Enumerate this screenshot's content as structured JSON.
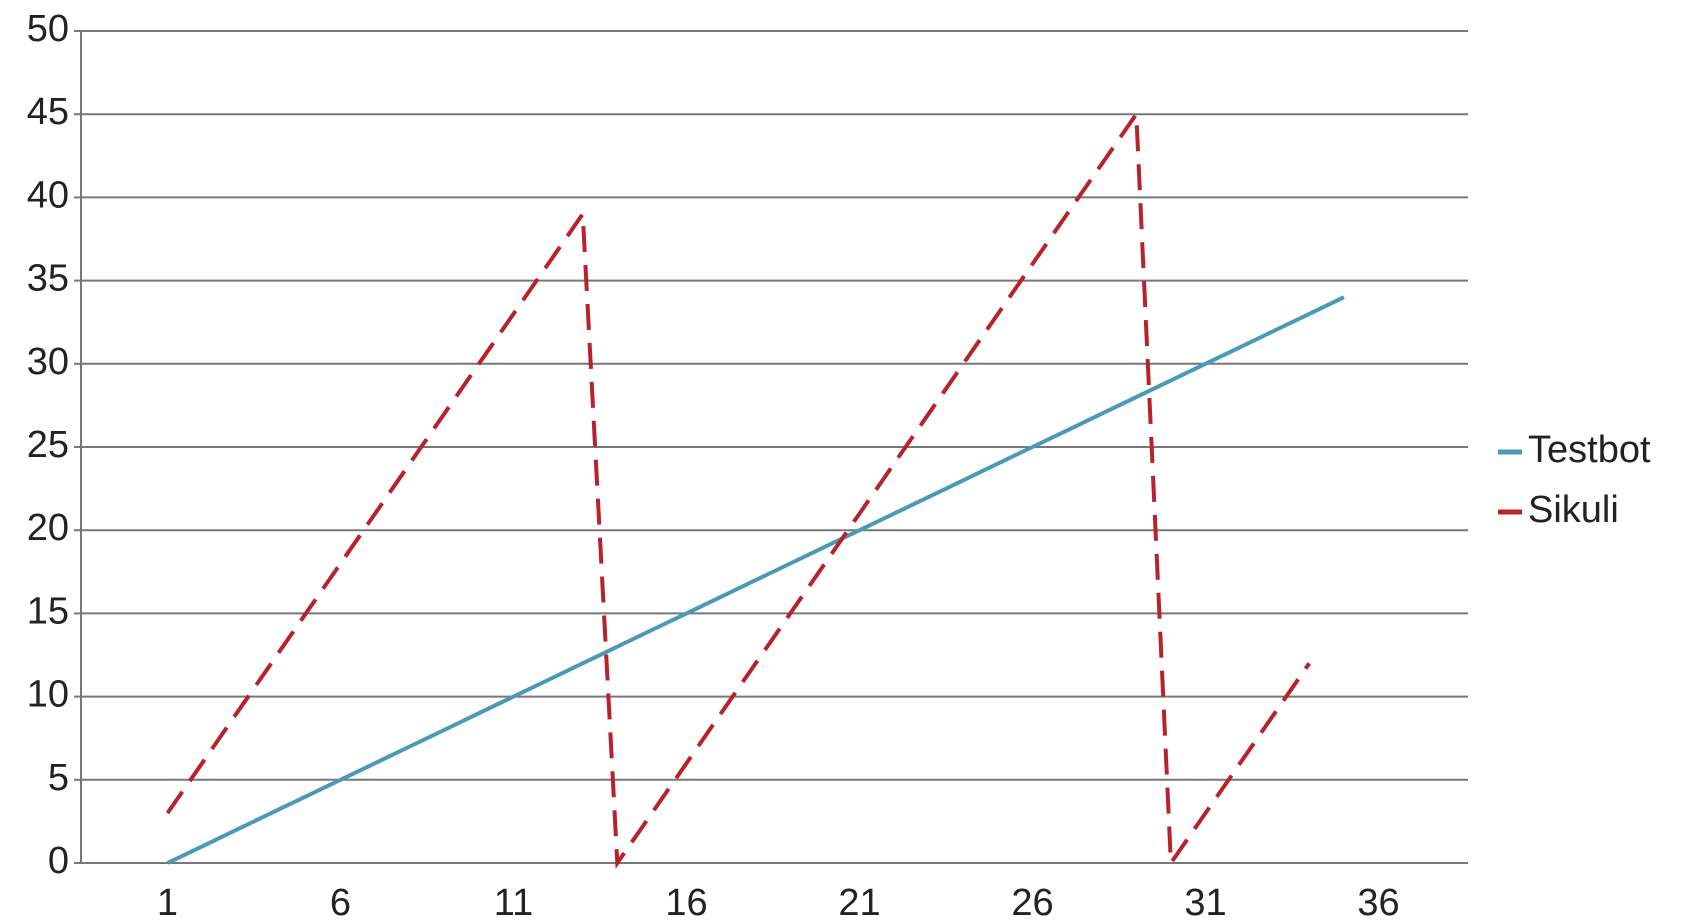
{
  "chart_data": {
    "type": "line",
    "x": [
      1,
      2,
      3,
      4,
      5,
      6,
      7,
      8,
      9,
      10,
      11,
      12,
      13,
      14,
      15,
      16,
      17,
      18,
      19,
      20,
      21,
      22,
      23,
      24,
      25,
      26,
      27,
      28,
      29,
      30,
      31,
      32,
      33,
      34,
      35
    ],
    "xlim": [
      -1.5,
      38.5
    ],
    "xticks": [
      1,
      6,
      11,
      16,
      21,
      26,
      31,
      36
    ],
    "ylim": [
      0,
      50
    ],
    "yticks": [
      0,
      5,
      10,
      15,
      20,
      25,
      30,
      35,
      40,
      45,
      50
    ],
    "grid": true,
    "legend": "right",
    "series": [
      {
        "name": "Testbot",
        "color": "#4a9ab5",
        "dash": false,
        "values": [
          0,
          1,
          2,
          3,
          4,
          5,
          6,
          7,
          8,
          9,
          10,
          11,
          12,
          13,
          14,
          15,
          16,
          17,
          18,
          19,
          20,
          21,
          22,
          23,
          24,
          25,
          26,
          27,
          28,
          29,
          30,
          31,
          32,
          33,
          34
        ]
      },
      {
        "name": "Sikuli",
        "color": "#b8232b",
        "dash": true,
        "values": [
          3,
          6,
          9,
          12,
          15,
          18,
          21,
          24,
          27,
          30,
          33,
          36,
          39,
          0,
          3,
          6,
          9,
          12,
          15,
          18,
          21,
          24,
          27,
          30,
          33,
          36,
          39,
          42,
          45,
          0,
          3,
          6,
          9,
          12,
          null
        ]
      }
    ]
  }
}
